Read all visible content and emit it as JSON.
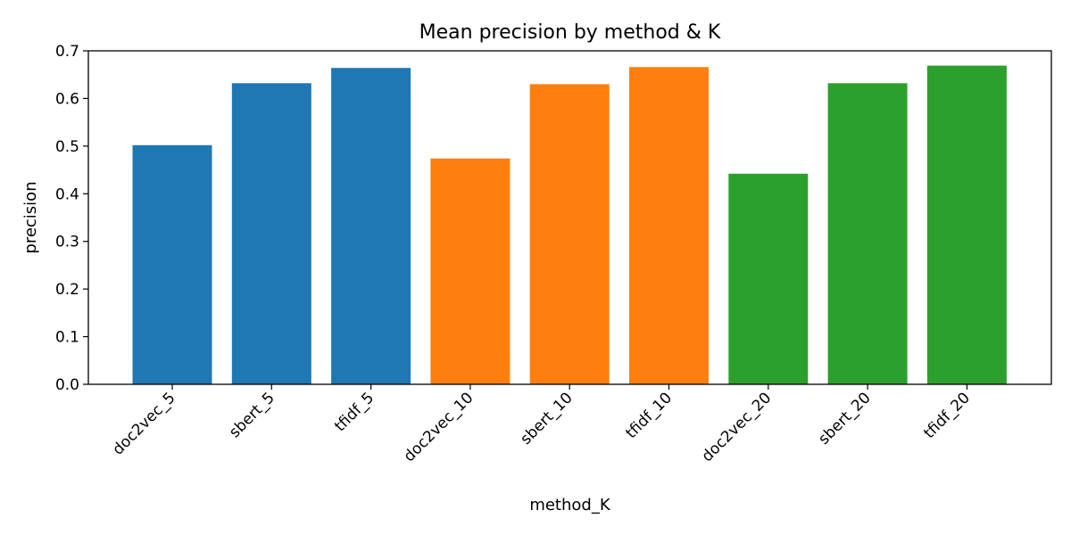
{
  "chart_data": {
    "type": "bar",
    "title": "Mean precision by method & K",
    "xlabel": "method_K",
    "ylabel": "precision",
    "categories": [
      "doc2vec_5",
      "sbert_5",
      "tfidf_5",
      "doc2vec_10",
      "sbert_10",
      "tfidf_10",
      "doc2vec_20",
      "sbert_20",
      "tfidf_20"
    ],
    "values": [
      0.502,
      0.632,
      0.664,
      0.474,
      0.63,
      0.666,
      0.442,
      0.632,
      0.669
    ],
    "bar_colors": [
      "#1f77b4",
      "#1f77b4",
      "#1f77b4",
      "#ff7f0e",
      "#ff7f0e",
      "#ff7f0e",
      "#2ca02c",
      "#2ca02c",
      "#2ca02c"
    ],
    "ylim": [
      0,
      0.7
    ],
    "yticks": [
      "0.0",
      "0.1",
      "0.2",
      "0.3",
      "0.4",
      "0.5",
      "0.6",
      "0.7"
    ],
    "grid": false,
    "legend": "none"
  }
}
